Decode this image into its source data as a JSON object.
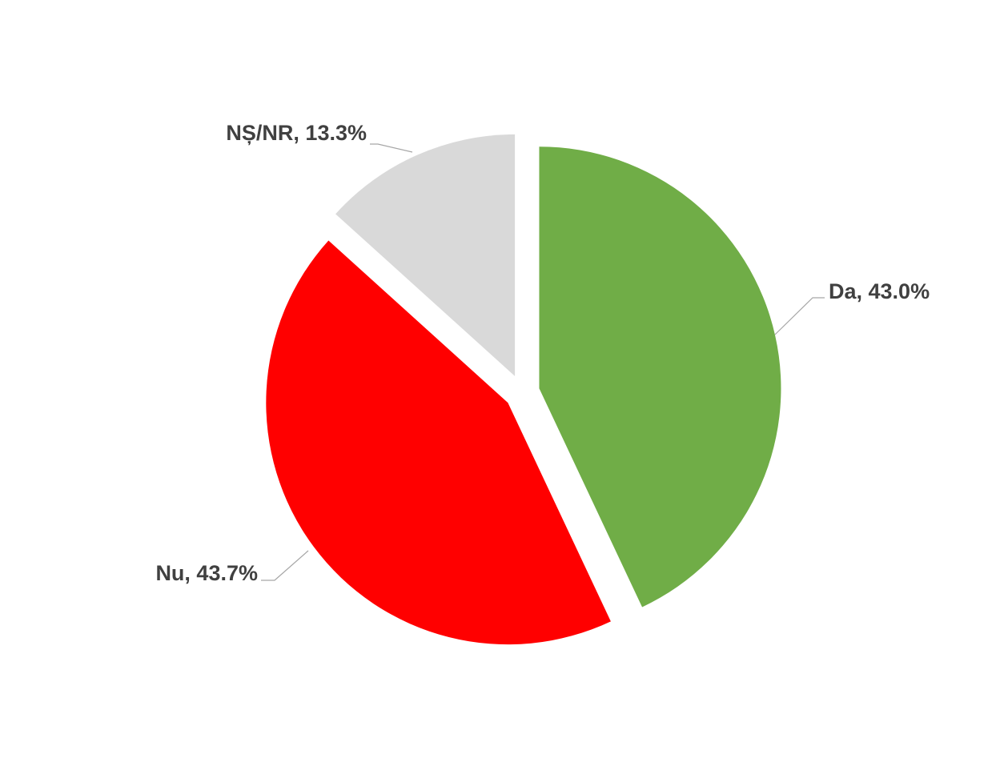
{
  "chart_data": {
    "type": "pie",
    "categories": [
      "Da",
      "Nu",
      "NȘ/NR"
    ],
    "values": [
      43.0,
      43.7,
      13.3
    ],
    "value_labels": [
      "Da, 43.0%",
      "Nu, 43.7%",
      "NȘ/NR, 13.3%"
    ],
    "colors": [
      "#70ad47",
      "#ff0000",
      "#d9d9d9"
    ]
  }
}
